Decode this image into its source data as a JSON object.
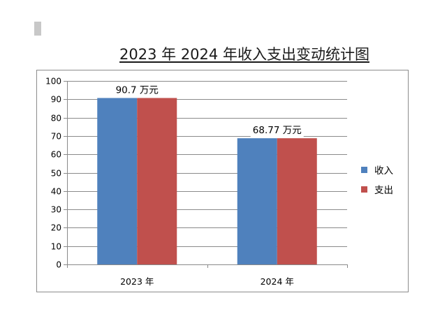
{
  "chart_data": {
    "type": "bar",
    "title": "2023 年 2024 年收入支出变动统计图",
    "categories": [
      "2023 年",
      "2024 年"
    ],
    "series": [
      {
        "name": "收入",
        "values": [
          90.7,
          68.77
        ],
        "color": "#4f81bd"
      },
      {
        "name": "支出",
        "values": [
          90.7,
          68.77
        ],
        "color": "#c0504d"
      }
    ],
    "data_labels": [
      "90.7 万元",
      "68.77 万元"
    ],
    "ylim": [
      0,
      100
    ],
    "yticks": [
      0,
      10,
      20,
      30,
      40,
      50,
      60,
      70,
      80,
      90,
      100
    ],
    "grid": true,
    "legend_position": "right"
  }
}
